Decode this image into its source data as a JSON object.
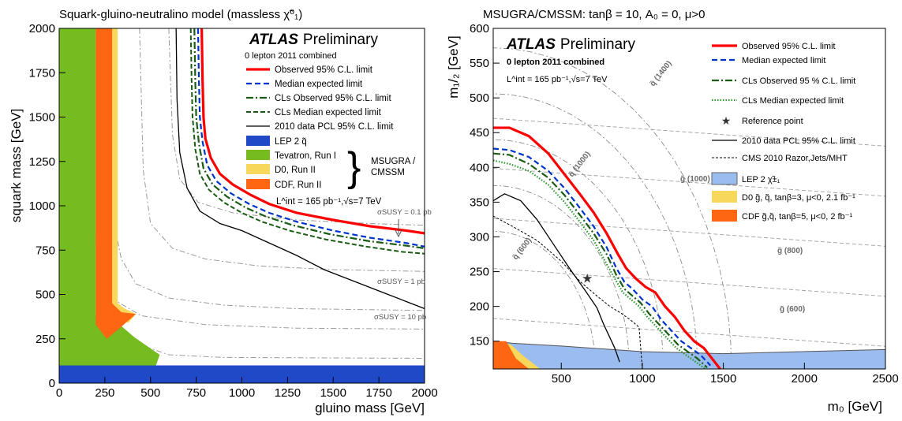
{
  "colors": {
    "observed": "#ff0000",
    "expected": "#0033cc",
    "cls_green": "#1a5c14",
    "cls_dotted": "#2a9a2a",
    "lep": "#1f49c7",
    "lep_light": "#9bbcef",
    "tevatron": "#76bb1f",
    "d0": "#f7d85a",
    "cdf": "#ff6611"
  },
  "chart_data": [
    {
      "type": "line",
      "title": "Squark-gluino-neutralino model (massless χ̃⁰₁)",
      "xlabel": "gluino mass [GeV]",
      "ylabel": "squark mass [GeV]",
      "xlim": [
        0,
        2000
      ],
      "ylim": [
        0,
        2000
      ],
      "xticks": [
        "0",
        "250",
        "500",
        "750",
        "1000",
        "1250",
        "1500",
        "1750",
        "2000"
      ],
      "yticks": [
        "0",
        "250",
        "500",
        "750",
        "1000",
        "1250",
        "1500",
        "1750",
        "2000"
      ],
      "atlas_bold": "ATLAS",
      "atlas_rest": "Preliminary",
      "subtitle": "0 lepton 2011 combined",
      "lumi": "L^int = 165 pb⁻¹,√s=7 TeV",
      "brace_label": [
        "MSUGRA /",
        "CMSSM"
      ],
      "legend": [
        {
          "label": "Observed 95% C.L. limit",
          "style": "observed"
        },
        {
          "label": "Median expected limit",
          "style": "expected"
        },
        {
          "label": "CLs Observed 95% C.L. limit",
          "style": "cls_obs"
        },
        {
          "label": "CLs Median expected limit",
          "style": "cls_exp"
        },
        {
          "label": "2010 data PCL 95% C.L. limit",
          "style": "pcl"
        },
        {
          "label": "LEP 2 q̃",
          "style": "lep"
        },
        {
          "label": "Tevatron, Run I",
          "style": "tevatron"
        },
        {
          "label": "D0, Run II",
          "style": "d0"
        },
        {
          "label": "CDF, Run II",
          "style": "cdf"
        }
      ],
      "annotations": [
        "σSUSY = 0.1 pb",
        "σSUSY = 1 pb",
        "σSUSY = 10 pb"
      ],
      "series": [
        {
          "name": "Observed 95% C.L. limit",
          "style": "observed",
          "x": [
            780,
            785,
            790,
            800,
            830,
            880,
            950,
            1050,
            1150,
            1300,
            1500,
            1700,
            1900,
            2000
          ],
          "y": [
            2000,
            1700,
            1500,
            1380,
            1270,
            1180,
            1120,
            1060,
            1010,
            960,
            920,
            885,
            860,
            845
          ]
        },
        {
          "name": "Median expected limit",
          "style": "expected",
          "x": [
            760,
            765,
            770,
            785,
            810,
            860,
            940,
            1040,
            1150,
            1300,
            1500,
            1700,
            1900,
            2000
          ],
          "y": [
            2000,
            1700,
            1500,
            1360,
            1230,
            1140,
            1070,
            1010,
            960,
            910,
            860,
            820,
            790,
            770
          ]
        },
        {
          "name": "CLs Observed 95% C.L. limit",
          "style": "cls_obs",
          "x": [
            740,
            745,
            750,
            765,
            790,
            840,
            920,
            1020,
            1130,
            1280,
            1480,
            1700,
            1900,
            2000
          ],
          "y": [
            2000,
            1700,
            1500,
            1350,
            1210,
            1120,
            1050,
            990,
            940,
            890,
            840,
            800,
            775,
            760
          ]
        },
        {
          "name": "CLs Median expected limit",
          "style": "cls_exp",
          "x": [
            720,
            725,
            730,
            745,
            770,
            820,
            900,
            1000,
            1110,
            1260,
            1460,
            1680,
            1880,
            2000
          ],
          "y": [
            2000,
            1700,
            1500,
            1320,
            1180,
            1090,
            1020,
            960,
            910,
            860,
            810,
            770,
            740,
            730
          ]
        },
        {
          "name": "2010 data PCL 95% C.L. limit",
          "style": "pcl",
          "x": [
            640,
            645,
            660,
            700,
            770,
            880,
            1000,
            1150,
            1300,
            1450,
            1600,
            1750,
            1900,
            2000
          ],
          "y": [
            2000,
            1600,
            1300,
            1100,
            970,
            900,
            860,
            790,
            720,
            640,
            580,
            520,
            460,
            420
          ]
        }
      ],
      "regions": [
        {
          "name": "LEP 2 q̃",
          "style": "lep",
          "x": [
            0,
            2000,
            2000,
            0
          ],
          "y": [
            0,
            0,
            100,
            100
          ]
        },
        {
          "name": "Tevatron, Run I",
          "style": "tevatron",
          "x": [
            0,
            200,
            200,
            320,
            410,
            550,
            530,
            0
          ],
          "y": [
            2000,
            2000,
            380,
            340,
            260,
            160,
            100,
            100
          ]
        },
        {
          "name": "D0, Run II",
          "style": "d0",
          "x": [
            220,
            320,
            320,
            360,
            420,
            380,
            290,
            220
          ],
          "y": [
            2000,
            2000,
            450,
            420,
            390,
            340,
            380,
            450
          ]
        },
        {
          "name": "CDF, Run II",
          "style": "cdf",
          "x": [
            200,
            290,
            290,
            340,
            420,
            320,
            260,
            200
          ],
          "y": [
            2000,
            2000,
            450,
            400,
            390,
            300,
            250,
            330
          ]
        }
      ]
    },
    {
      "type": "line",
      "title": "MSUGRA/CMSSM: tanβ = 10, A₀ = 0, μ>0",
      "xlabel": "m₀ [GeV]",
      "ylabel": "m₁/₂ [GeV]",
      "xlim": [
        80,
        2500
      ],
      "ylim": [
        110,
        600
      ],
      "xticks": [
        "500",
        "1000",
        "1500",
        "2000",
        "2500"
      ],
      "yticks": [
        "150",
        "200",
        "250",
        "300",
        "350",
        "400",
        "450",
        "500",
        "550",
        "600"
      ],
      "atlas_bold": "ATLAS",
      "atlas_rest": "Preliminary",
      "subtitle": "0 lepton 2011 combined",
      "lumi": "L^int = 165 pb⁻¹,√s=7 TeV",
      "legend": [
        {
          "label": "Observed 95% C.L. limit",
          "style": "observed"
        },
        {
          "label": "Median expected limit",
          "style": "expected"
        },
        {
          "label": "CLs Observed 95 % C.L. limit",
          "style": "cls_obs"
        },
        {
          "label": "CLs Median expected limit",
          "style": "cls_dot"
        },
        {
          "label": "Reference point",
          "style": "star"
        },
        {
          "label": "2010 data PCL 95% C.L. limit",
          "style": "pcl"
        },
        {
          "label": "CMS 2010 Razor,Jets/MHT",
          "style": "cms"
        },
        {
          "label": "LEP 2 χ̃±₁",
          "style": "lep_light"
        },
        {
          "label": "D0 g̃, q̃, tanβ=3, μ<0, 2.1 fb⁻¹",
          "style": "d0"
        },
        {
          "label": "CDF g̃,q̃, tanβ=5, μ<0, 2 fb⁻¹",
          "style": "cdf"
        }
      ],
      "iso_labels": [
        "q̃ (1400)",
        "q̃ (1000)",
        "q̃ (600)",
        "g̃ (1000)",
        "g̃ (800)",
        "g̃ (600)"
      ],
      "reference_point": {
        "x": 660,
        "y": 240
      },
      "series": [
        {
          "name": "Observed 95% C.L. limit",
          "style": "observed",
          "x": [
            80,
            180,
            300,
            420,
            520,
            620,
            700,
            780,
            850,
            900,
            960,
            1020,
            1080,
            1140,
            1200,
            1260,
            1320,
            1380,
            1430,
            1480
          ],
          "y": [
            457,
            457,
            445,
            420,
            390,
            360,
            335,
            305,
            275,
            255,
            240,
            228,
            220,
            200,
            185,
            165,
            150,
            140,
            125,
            110
          ]
        },
        {
          "name": "Median expected limit",
          "style": "expected",
          "x": [
            80,
            180,
            300,
            420,
            520,
            620,
            700,
            780,
            840,
            890,
            940,
            1000,
            1060,
            1120,
            1180,
            1240,
            1300,
            1360,
            1420
          ],
          "y": [
            427,
            425,
            415,
            395,
            370,
            340,
            315,
            285,
            255,
            235,
            225,
            210,
            200,
            180,
            165,
            150,
            140,
            130,
            115
          ]
        },
        {
          "name": "CLs Observed 95 % C.L. limit",
          "style": "cls_obs",
          "x": [
            80,
            180,
            300,
            420,
            520,
            620,
            700,
            780,
            840,
            890,
            940,
            990,
            1040,
            1100,
            1160,
            1220,
            1280,
            1340,
            1400
          ],
          "y": [
            420,
            418,
            405,
            385,
            360,
            330,
            305,
            275,
            245,
            225,
            215,
            205,
            190,
            175,
            160,
            145,
            135,
            125,
            112
          ]
        },
        {
          "name": "CLs Median expected limit",
          "style": "cls_dot",
          "x": [
            80,
            180,
            300,
            420,
            520,
            620,
            700,
            770,
            830,
            880,
            930,
            980,
            1030,
            1090,
            1150,
            1210,
            1270,
            1330,
            1390
          ],
          "y": [
            410,
            405,
            395,
            375,
            350,
            320,
            295,
            265,
            240,
            220,
            210,
            200,
            185,
            170,
            155,
            140,
            130,
            120,
            110
          ]
        },
        {
          "name": "2010 data PCL 95% C.L. limit",
          "style": "pcl",
          "x": [
            80,
            150,
            250,
            350,
            450,
            550,
            650,
            720,
            760,
            800,
            830,
            860
          ],
          "y": [
            352,
            362,
            352,
            325,
            290,
            255,
            222,
            198,
            175,
            155,
            140,
            120
          ]
        },
        {
          "name": "CMS 2010 Razor,Jets/MHT",
          "style": "cms",
          "x": [
            80,
            200,
            350,
            500,
            620,
            720,
            800,
            870,
            930,
            980,
            1000
          ],
          "y": [
            330,
            315,
            295,
            265,
            235,
            215,
            200,
            190,
            180,
            170,
            110
          ]
        }
      ],
      "regions": [
        {
          "name": "LEP 2 χ̃±₁",
          "style": "lep_light",
          "x": [
            80,
            2500,
            2500,
            1500,
            1000,
            500,
            200,
            80
          ],
          "y": [
            110,
            110,
            138,
            132,
            135,
            143,
            147,
            150
          ]
        },
        {
          "name": "D0 g̃, q̃, tanβ=3, μ<0, 2.1 fb⁻¹",
          "style": "d0",
          "x": [
            80,
            370,
            260,
            190,
            80
          ],
          "y": [
            110,
            110,
            130,
            145,
            150
          ]
        },
        {
          "name": "CDF g̃,q̃, tanβ=5, μ<0, 2 fb⁻¹",
          "style": "cdf",
          "x": [
            80,
            300,
            220,
            160,
            80
          ],
          "y": [
            110,
            110,
            125,
            150,
            150
          ]
        }
      ]
    }
  ]
}
